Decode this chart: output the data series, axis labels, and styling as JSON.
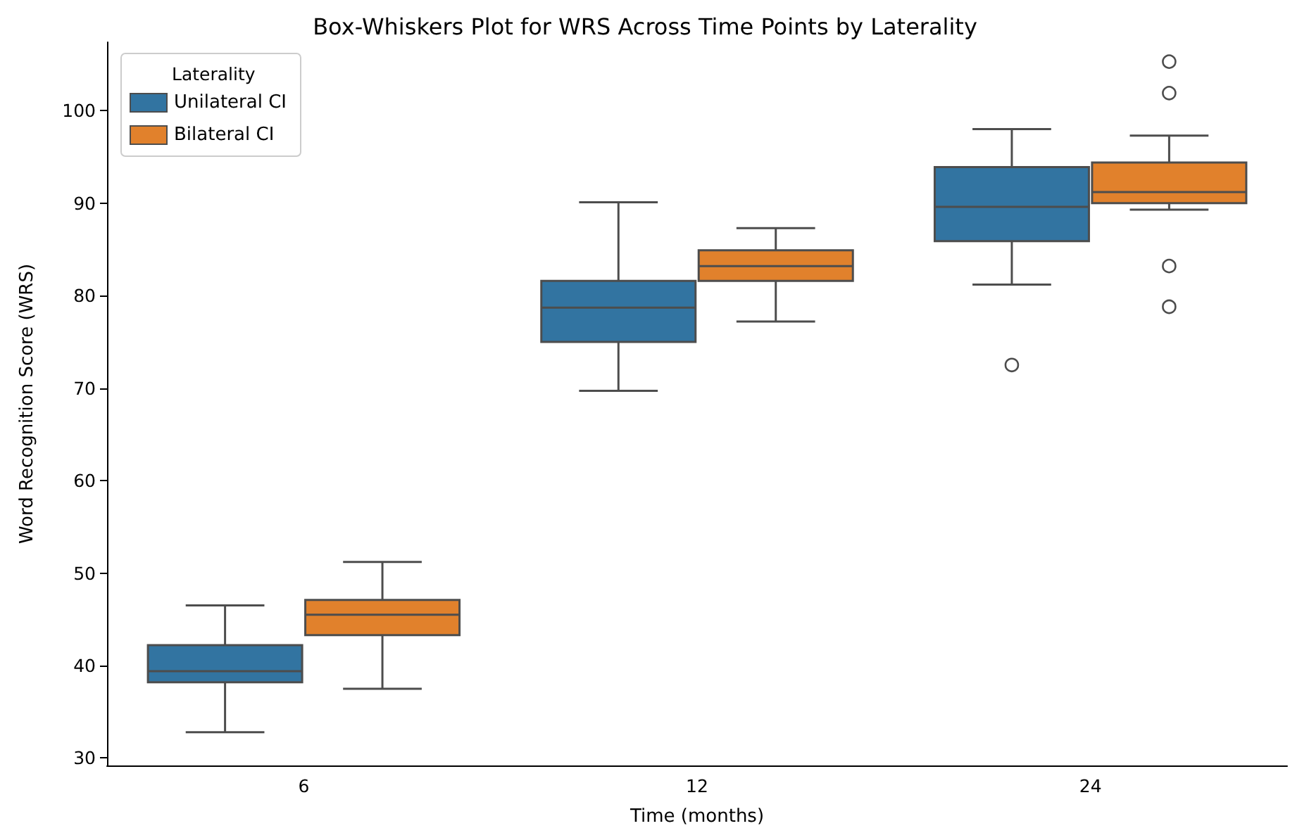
{
  "chart_data": {
    "type": "box",
    "title": "Box-Whiskers Plot for WRS Across Time Points by Laterality",
    "xlabel": "Time (months)",
    "ylabel": "Word Recognition Score (WRS)",
    "legend_title": "Laterality",
    "legend": "top left",
    "categories": [
      "6",
      "12",
      "24"
    ],
    "ylim": [
      29.2,
      107.4
    ],
    "yticks": [
      30,
      40,
      50,
      60,
      70,
      80,
      90,
      100
    ],
    "series": [
      {
        "name": "Unilateral CI",
        "color": "#3274a1",
        "boxes": [
          {
            "low": 32.8,
            "q1": 38.2,
            "median": 39.4,
            "q3": 42.2,
            "high": 46.5
          },
          {
            "low": 69.7,
            "q1": 75.0,
            "median": 78.7,
            "q3": 81.6,
            "high": 90.1
          },
          {
            "low": 81.2,
            "q1": 85.9,
            "median": 89.6,
            "q3": 93.9,
            "high": 98.0,
            "outliers": [
              72.5
            ]
          }
        ]
      },
      {
        "name": "Bilateral CI",
        "color": "#e1812c",
        "boxes": [
          {
            "low": 37.5,
            "q1": 43.3,
            "median": 45.5,
            "q3": 47.1,
            "high": 51.2
          },
          {
            "low": 77.2,
            "q1": 81.6,
            "median": 83.2,
            "q3": 84.9,
            "high": 87.3
          },
          {
            "low": 89.3,
            "q1": 90.0,
            "median": 91.2,
            "q3": 94.4,
            "high": 97.3,
            "outliers": [
              105.3,
              101.9,
              83.2,
              78.8
            ]
          }
        ]
      }
    ]
  }
}
